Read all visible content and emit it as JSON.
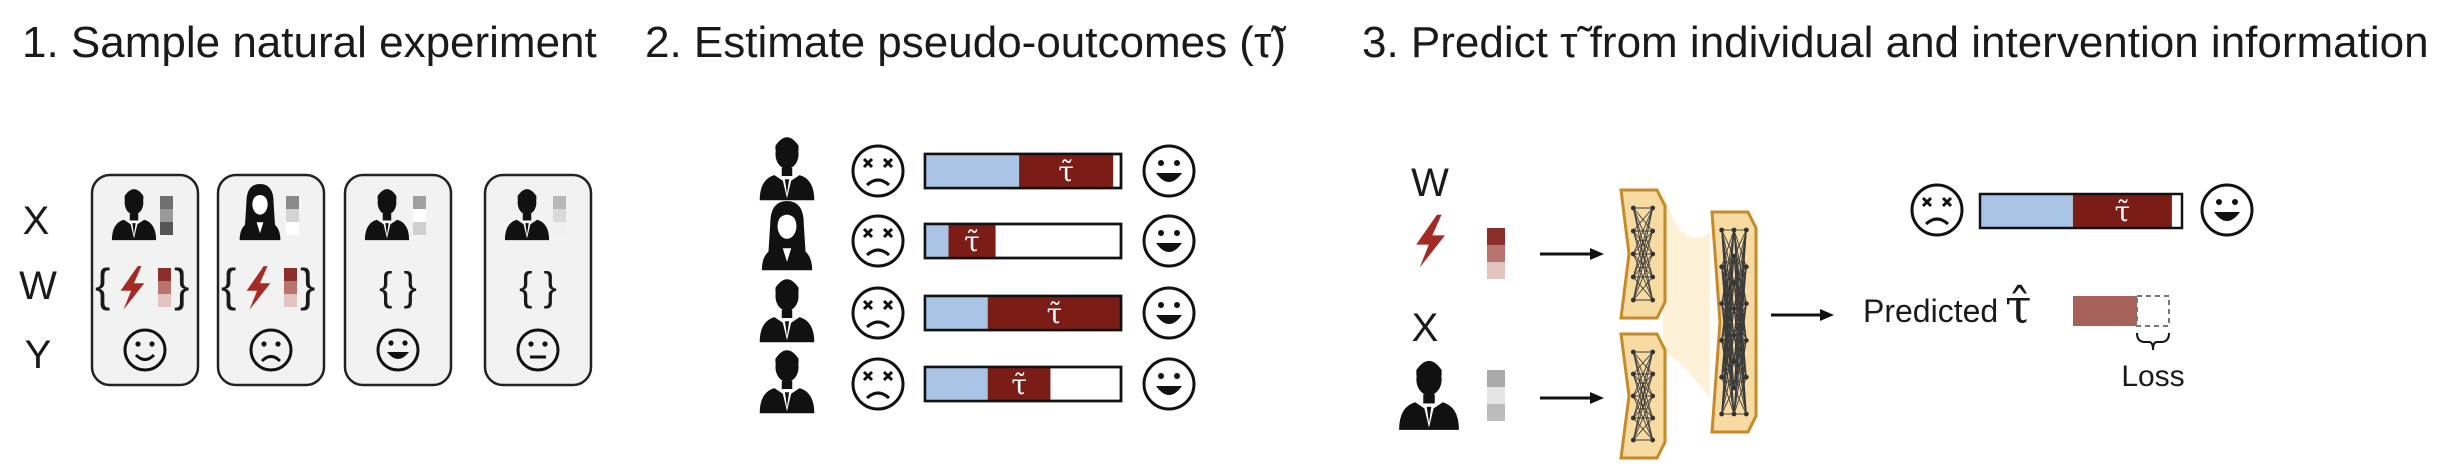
{
  "titles": {
    "step1": "1. Sample natural experiment",
    "step2": "2. Estimate pseudo-outcomes (τ̃)",
    "step3": "3. Predict τ̃ from individual and intervention information"
  },
  "row_labels": {
    "x": "X",
    "w": "W",
    "y": "Y"
  },
  "braces": {
    "open": "{",
    "close": "}",
    "empty": "{ }"
  },
  "tau_tilde": "τ̃",
  "tau_hat": "τ̂",
  "predicted_label": "Predicted",
  "loss_label": "Loss",
  "network_inputs": {
    "w": "W",
    "x": "X"
  },
  "samples": [
    {
      "person": "man",
      "intervention": "lightning",
      "outcome": "smile"
    },
    {
      "person": "woman",
      "intervention": "lightning",
      "outcome": "frown"
    },
    {
      "person": "man",
      "intervention": "none",
      "outcome": "grin"
    },
    {
      "person": "man",
      "intervention": "none",
      "outcome": "neutral"
    }
  ],
  "pseudo_outcomes": [
    {
      "person": "man",
      "blue_fraction": 0.48,
      "red_fraction": 0.48
    },
    {
      "person": "woman",
      "blue_fraction": 0.12,
      "red_fraction": 0.24
    },
    {
      "person": "man",
      "blue_fraction": 0.32,
      "red_fraction": 0.68
    },
    {
      "person": "man",
      "blue_fraction": 0.32,
      "red_fraction": 0.32
    }
  ],
  "prediction_bar": {
    "blue_fraction": 0.46,
    "red_fraction": 0.49
  },
  "colors": {
    "dark_red": "#7b1c17",
    "light_blue": "#aac4e6",
    "muted_red": "#a6625a",
    "lightning": "#a32a25",
    "card_fill": "#f2f2f2",
    "network_fill": "#f7dba3",
    "network_stroke": "#c58a2a"
  }
}
